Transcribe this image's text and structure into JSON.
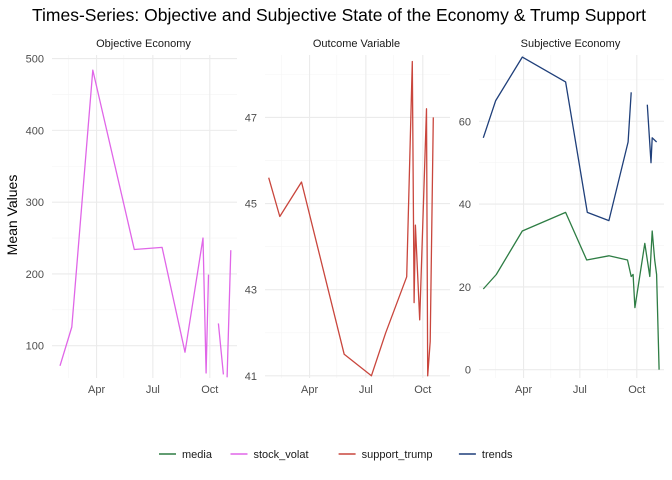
{
  "chart_data": {
    "type": "line",
    "title": "Times-Series: Objective and Subjective State of the Economy & Trump Support",
    "ylabel": "Mean Values",
    "xlabel": "",
    "x_ticks": [
      "Apr",
      "Jul",
      "Oct"
    ],
    "legend_position": "bottom",
    "legend": [
      {
        "key": "media",
        "color": "#2e7d44"
      },
      {
        "key": "stock_volat",
        "color": "#e066e8"
      },
      {
        "key": "support_trump",
        "color": "#c9463d"
      },
      {
        "key": "trends",
        "color": "#1f3f7a"
      }
    ],
    "panels": [
      {
        "strip": "Objective Economy",
        "xlim": [
          "2019-01-19",
          "2019-11-14"
        ],
        "ylim": [
          55,
          505
        ],
        "y_ticks": [
          100,
          200,
          300,
          400,
          500
        ],
        "series": [
          {
            "name": "stock_volat",
            "points": [
              [
                "2019-02-01",
                72
              ],
              [
                "2019-02-20",
                126
              ],
              [
                "2019-03-26",
                484
              ],
              [
                "2019-06-01",
                234
              ],
              [
                "2019-07-16",
                237
              ],
              [
                "2019-08-22",
                91
              ],
              [
                "2019-09-20",
                250
              ],
              [
                "2019-09-25",
                62
              ],
              [
                "2019-09-29",
                199
              ],
              null,
              [
                "2019-10-15",
                131
              ],
              [
                "2019-10-23",
                60
              ],
              null,
              [
                "2019-10-29",
                56
              ],
              [
                "2019-11-04",
                233
              ]
            ]
          }
        ]
      },
      {
        "strip": "Outcome Variable",
        "xlim": [
          "2019-01-19",
          "2019-11-14"
        ],
        "ylim": [
          40.95,
          48.45
        ],
        "y_ticks": [
          41,
          43,
          45,
          47
        ],
        "series": [
          {
            "name": "support_trump",
            "points": [
              [
                "2019-01-25",
                45.6
              ],
              [
                "2019-02-12",
                44.7
              ],
              [
                "2019-03-19",
                45.5
              ],
              [
                "2019-05-27",
                41.5
              ],
              [
                "2019-07-10",
                41.0
              ],
              [
                "2019-08-02",
                42.0
              ],
              [
                "2019-09-05",
                43.3
              ],
              [
                "2019-09-14",
                48.3
              ],
              [
                "2019-09-17",
                42.7
              ],
              [
                "2019-09-19",
                44.5
              ],
              [
                "2019-09-26",
                42.3
              ],
              [
                "2019-10-07",
                47.2
              ],
              [
                "2019-10-09",
                41.0
              ],
              [
                "2019-10-13",
                41.8
              ],
              [
                "2019-10-18",
                47.0
              ]
            ]
          }
        ]
      },
      {
        "strip": "Subjective Economy",
        "xlim": [
          "2019-01-19",
          "2019-11-14"
        ],
        "ylim": [
          -2,
          76
        ],
        "y_ticks": [
          0,
          20,
          40,
          60
        ],
        "series": [
          {
            "name": "trends",
            "points": [
              [
                "2019-01-26",
                56
              ],
              [
                "2019-02-15",
                65
              ],
              [
                "2019-03-30",
                75.5
              ],
              [
                "2019-06-08",
                69.5
              ],
              [
                "2019-07-13",
                38
              ],
              [
                "2019-08-17",
                36
              ],
              [
                "2019-09-17",
                55
              ],
              [
                "2019-09-22",
                67
              ],
              null,
              [
                "2019-10-18",
                64
              ],
              [
                "2019-10-24",
                50
              ],
              [
                "2019-10-26",
                56
              ],
              [
                "2019-11-02",
                55
              ]
            ]
          },
          {
            "name": "media",
            "points": [
              [
                "2019-01-26",
                19.5
              ],
              [
                "2019-02-16",
                23
              ],
              [
                "2019-03-30",
                33.5
              ],
              [
                "2019-06-08",
                38
              ],
              [
                "2019-07-12",
                26.5
              ],
              [
                "2019-08-17",
                27.5
              ],
              [
                "2019-09-16",
                26.5
              ],
              [
                "2019-09-22",
                22.5
              ],
              [
                "2019-09-25",
                23
              ],
              [
                "2019-09-28",
                15
              ],
              [
                "2019-10-14",
                30.5
              ],
              [
                "2019-10-22",
                22.5
              ],
              [
                "2019-10-26",
                33.5
              ],
              [
                "2019-10-30",
                26.5
              ],
              [
                "2019-11-02",
                23
              ],
              [
                "2019-11-06",
                0
              ]
            ]
          }
        ]
      }
    ]
  }
}
